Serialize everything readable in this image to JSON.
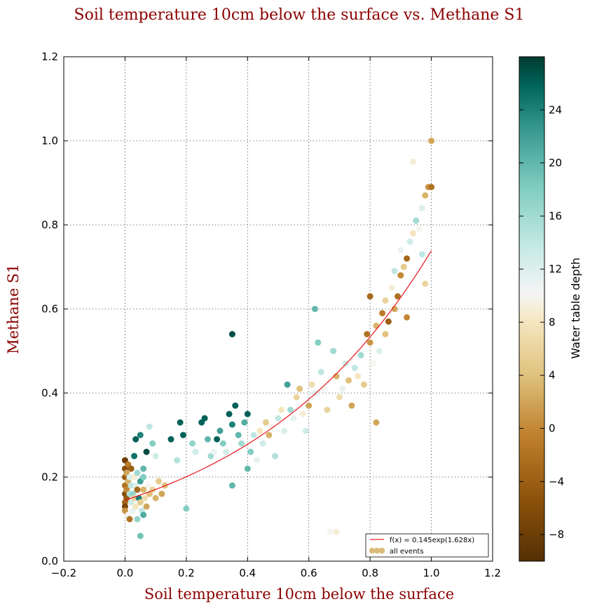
{
  "chart_data": {
    "type": "scatter",
    "title": "Soil temperature 10cm below the surface vs.  Methane S1",
    "xlabel": "Soil temperature 10cm below the surface",
    "ylabel": "Methane S1",
    "xlim": [
      -0.2,
      1.2
    ],
    "ylim": [
      0.0,
      1.2
    ],
    "xticks": [
      "−0.2",
      "0.0",
      "0.2",
      "0.4",
      "0.6",
      "0.8",
      "1.0",
      "1.2"
    ],
    "yticks": [
      "0.0",
      "0.2",
      "0.4",
      "0.6",
      "0.8",
      "1.0",
      "1.2"
    ],
    "grid": true,
    "legend_position": "lower-right",
    "colorbar": {
      "label": "Water table depth",
      "range": [
        -10,
        28
      ],
      "ticks": [
        "−8",
        "−4",
        "0",
        "4",
        "8",
        "12",
        "16",
        "20",
        "24"
      ],
      "colormap": "BrBG"
    },
    "series": [
      {
        "name": "f(x) = 0.145exp(1.628x)",
        "type": "line",
        "color": "#e8252b",
        "function": {
          "a": 0.145,
          "b": 1.628,
          "xrange": [
            0.0,
            1.0
          ]
        }
      },
      {
        "name": "all events",
        "type": "scatter",
        "legend_color": "#d9bc7c",
        "points": [
          [
            0.0,
            0.24,
            -8
          ],
          [
            0.0,
            0.22,
            -6
          ],
          [
            0.0,
            0.2,
            -4
          ],
          [
            0.0,
            0.18,
            -2
          ],
          [
            0.0,
            0.16,
            -6
          ],
          [
            0.0,
            0.14,
            -3
          ],
          [
            0.0,
            0.13,
            -7
          ],
          [
            0.0,
            0.12,
            1
          ],
          [
            0.005,
            0.21,
            2
          ],
          [
            0.005,
            0.17,
            0
          ],
          [
            0.005,
            0.15,
            -5
          ],
          [
            0.01,
            0.23,
            -1
          ],
          [
            0.01,
            0.19,
            3
          ],
          [
            0.01,
            0.11,
            10
          ],
          [
            0.015,
            0.2,
            12
          ],
          [
            0.015,
            0.16,
            15
          ],
          [
            0.015,
            0.1,
            -2
          ],
          [
            0.02,
            0.18,
            14
          ],
          [
            0.02,
            0.14,
            13
          ],
          [
            0.02,
            0.22,
            -4
          ],
          [
            0.025,
            0.16,
            17
          ],
          [
            0.025,
            0.12,
            11
          ],
          [
            0.03,
            0.2,
            9
          ],
          [
            0.03,
            0.15,
            6
          ],
          [
            0.035,
            0.18,
            12
          ],
          [
            0.035,
            0.13,
            8
          ],
          [
            0.04,
            0.21,
            16
          ],
          [
            0.04,
            0.17,
            -3
          ],
          [
            0.045,
            0.15,
            24
          ],
          [
            0.05,
            0.19,
            22
          ],
          [
            0.05,
            0.14,
            5
          ],
          [
            0.055,
            0.12,
            14
          ],
          [
            0.06,
            0.17,
            3
          ],
          [
            0.06,
            0.2,
            18
          ],
          [
            0.065,
            0.15,
            7
          ],
          [
            0.07,
            0.13,
            2
          ],
          [
            0.075,
            0.18,
            10
          ],
          [
            0.08,
            0.16,
            4
          ],
          [
            0.09,
            0.17,
            6
          ],
          [
            0.1,
            0.15,
            3
          ],
          [
            0.11,
            0.19,
            5
          ],
          [
            0.12,
            0.16,
            2
          ],
          [
            0.13,
            0.18,
            4
          ],
          [
            0.05,
            0.06,
            19
          ],
          [
            0.06,
            0.11,
            21
          ],
          [
            0.04,
            0.1,
            17
          ],
          [
            0.03,
            0.25,
            25
          ],
          [
            0.035,
            0.29,
            26
          ],
          [
            0.05,
            0.3,
            24
          ],
          [
            0.07,
            0.26,
            27
          ],
          [
            0.08,
            0.32,
            14
          ],
          [
            0.06,
            0.22,
            20
          ],
          [
            0.09,
            0.28,
            18
          ],
          [
            0.1,
            0.25,
            13
          ],
          [
            0.15,
            0.29,
            26
          ],
          [
            0.17,
            0.24,
            15
          ],
          [
            0.18,
            0.33,
            26
          ],
          [
            0.19,
            0.3,
            26
          ],
          [
            0.2,
            0.125,
            18
          ],
          [
            0.22,
            0.28,
            17
          ],
          [
            0.23,
            0.26,
            13
          ],
          [
            0.25,
            0.33,
            26
          ],
          [
            0.26,
            0.34,
            26
          ],
          [
            0.27,
            0.29,
            20
          ],
          [
            0.28,
            0.25,
            16
          ],
          [
            0.29,
            0.26,
            11
          ],
          [
            0.3,
            0.29,
            26
          ],
          [
            0.31,
            0.31,
            22
          ],
          [
            0.32,
            0.28,
            18
          ],
          [
            0.33,
            0.26,
            13
          ],
          [
            0.34,
            0.35,
            26
          ],
          [
            0.35,
            0.54,
            27
          ],
          [
            0.35,
            0.325,
            24
          ],
          [
            0.36,
            0.37,
            26
          ],
          [
            0.37,
            0.3,
            20
          ],
          [
            0.38,
            0.28,
            16
          ],
          [
            0.39,
            0.33,
            21
          ],
          [
            0.4,
            0.35,
            26
          ],
          [
            0.4,
            0.22,
            20
          ],
          [
            0.41,
            0.26,
            18
          ],
          [
            0.35,
            0.18,
            20
          ],
          [
            0.42,
            0.3,
            14
          ],
          [
            0.43,
            0.24,
            11
          ],
          [
            0.44,
            0.31,
            8
          ],
          [
            0.45,
            0.28,
            13
          ],
          [
            0.46,
            0.33,
            5
          ],
          [
            0.47,
            0.3,
            3
          ],
          [
            0.48,
            0.32,
            10
          ],
          [
            0.49,
            0.25,
            15
          ],
          [
            0.5,
            0.34,
            14
          ],
          [
            0.51,
            0.36,
            8
          ],
          [
            0.52,
            0.31,
            12
          ],
          [
            0.53,
            0.42,
            22
          ],
          [
            0.54,
            0.36,
            16
          ],
          [
            0.55,
            0.34,
            11
          ],
          [
            0.56,
            0.39,
            6
          ],
          [
            0.57,
            0.41,
            4
          ],
          [
            0.58,
            0.35,
            9
          ],
          [
            0.59,
            0.31,
            13
          ],
          [
            0.6,
            0.37,
            2
          ],
          [
            0.61,
            0.42,
            7
          ],
          [
            0.62,
            0.4,
            12
          ],
          [
            0.62,
            0.6,
            20
          ],
          [
            0.63,
            0.52,
            18
          ],
          [
            0.64,
            0.45,
            14
          ],
          [
            0.65,
            0.41,
            10
          ],
          [
            0.66,
            0.36,
            6
          ],
          [
            0.67,
            0.07,
            10
          ],
          [
            0.69,
            0.07,
            9
          ],
          [
            0.68,
            0.5,
            16
          ],
          [
            0.69,
            0.44,
            3
          ],
          [
            0.7,
            0.39,
            7
          ],
          [
            0.71,
            0.41,
            11
          ],
          [
            0.72,
            0.47,
            13
          ],
          [
            0.73,
            0.43,
            4
          ],
          [
            0.74,
            0.37,
            2
          ],
          [
            0.75,
            0.46,
            14
          ],
          [
            0.76,
            0.44,
            8
          ],
          [
            0.77,
            0.49,
            16
          ],
          [
            0.78,
            0.42,
            5
          ],
          [
            0.79,
            0.54,
            -2
          ],
          [
            0.8,
            0.52,
            1
          ],
          [
            0.8,
            0.63,
            -3
          ],
          [
            0.81,
            0.47,
            10
          ],
          [
            0.82,
            0.56,
            3
          ],
          [
            0.82,
            0.33,
            2
          ],
          [
            0.83,
            0.5,
            12
          ],
          [
            0.84,
            0.59,
            -1
          ],
          [
            0.85,
            0.54,
            4
          ],
          [
            0.85,
            0.62,
            6
          ],
          [
            0.86,
            0.57,
            -4
          ],
          [
            0.87,
            0.65,
            9
          ],
          [
            0.88,
            0.6,
            2
          ],
          [
            0.88,
            0.69,
            14
          ],
          [
            0.89,
            0.63,
            -2
          ],
          [
            0.9,
            0.68,
            0
          ],
          [
            0.9,
            0.74,
            11
          ],
          [
            0.91,
            0.7,
            5
          ],
          [
            0.92,
            0.72,
            -3
          ],
          [
            0.93,
            0.76,
            13
          ],
          [
            0.94,
            0.78,
            8
          ],
          [
            0.95,
            0.81,
            16
          ],
          [
            0.96,
            0.79,
            10
          ],
          [
            0.97,
            0.84,
            12
          ],
          [
            0.98,
            0.87,
            3
          ],
          [
            0.99,
            0.89,
            1
          ],
          [
            1.0,
            1.0,
            2
          ],
          [
            1.0,
            0.89,
            -2
          ],
          [
            0.94,
            0.95,
            9
          ],
          [
            0.97,
            0.73,
            14
          ],
          [
            0.98,
            0.66,
            6
          ],
          [
            0.92,
            0.58,
            0
          ]
        ]
      }
    ]
  }
}
